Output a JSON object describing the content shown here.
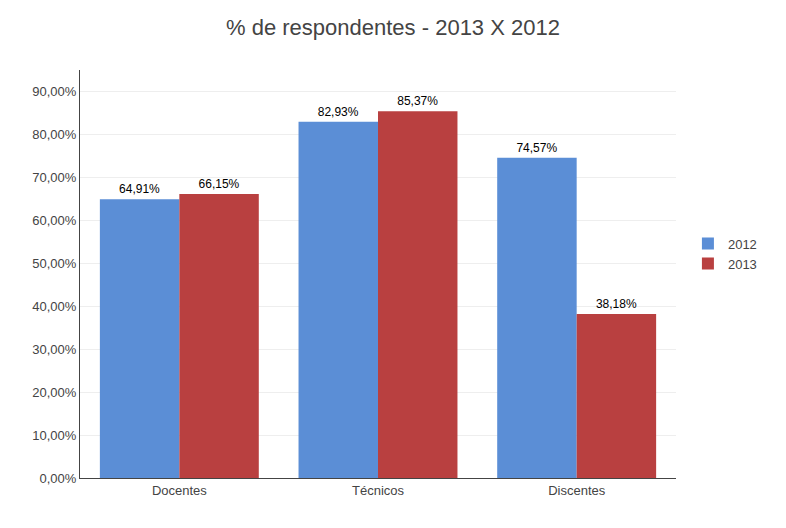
{
  "chart_data": {
    "type": "bar",
    "title": "% de respondentes - 2013 X 2012",
    "categories": [
      "Docentes",
      "Técnicos",
      "Discentes"
    ],
    "series": [
      {
        "name": "2012",
        "color": "#5B8ED6",
        "values": [
          64.91,
          82.93,
          74.57
        ],
        "value_labels": [
          "64,91%",
          "82,93%",
          "74,57%"
        ]
      },
      {
        "name": "2013",
        "color": "#B94040",
        "values": [
          66.15,
          85.37,
          38.18
        ],
        "value_labels": [
          "66,15%",
          "85,37%",
          "38,18%"
        ]
      }
    ],
    "ylim": [
      0,
      95
    ],
    "yticks": [
      {
        "value": 0,
        "label": "0,00%"
      },
      {
        "value": 10,
        "label": "10,00%"
      },
      {
        "value": 20,
        "label": "20,00%"
      },
      {
        "value": 30,
        "label": "30,00%"
      },
      {
        "value": 40,
        "label": "40,00%"
      },
      {
        "value": 50,
        "label": "50,00%"
      },
      {
        "value": 60,
        "label": "60,00%"
      },
      {
        "value": 70,
        "label": "70,00%"
      },
      {
        "value": 80,
        "label": "80,00%"
      },
      {
        "value": 90,
        "label": "90,00%"
      }
    ],
    "grid": true,
    "legend": "right",
    "data_labels": true
  }
}
